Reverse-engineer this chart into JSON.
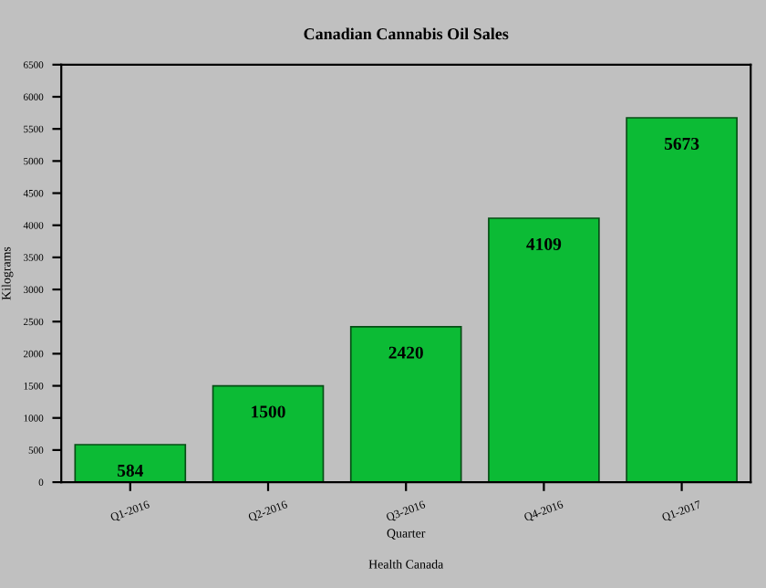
{
  "chart_data": {
    "type": "bar",
    "title": "Canadian Cannabis Oil Sales",
    "xlabel": "Quarter",
    "ylabel": "Kilograms",
    "annotations": [
      "Health Canada"
    ],
    "categories": [
      "Q1-2016",
      "Q2-2016",
      "Q3-2016",
      "Q4-2016",
      "Q1-2017"
    ],
    "values": [
      584,
      1500,
      2420,
      4109,
      5673
    ],
    "color": "#0cbb35",
    "data_labels": true,
    "ylim": [
      0,
      6500
    ],
    "yticks": [
      0,
      500,
      1000,
      1500,
      2000,
      2500,
      3000,
      3500,
      4000,
      4500,
      5000,
      5500,
      6000,
      6500
    ],
    "grid": false
  }
}
